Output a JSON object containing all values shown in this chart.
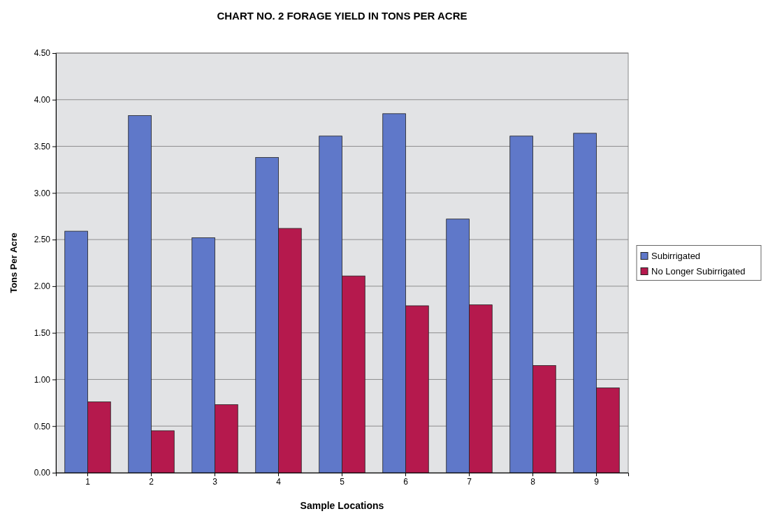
{
  "chart_data": {
    "type": "bar",
    "title": "CHART NO. 2   FORAGE YIELD IN TONS PER ACRE",
    "xlabel": "Sample Locations",
    "ylabel": "Tons Per Acre",
    "categories": [
      "1",
      "2",
      "3",
      "4",
      "5",
      "6",
      "7",
      "8",
      "9"
    ],
    "series": [
      {
        "name": "Subirrigated",
        "color": "#5f78c9",
        "values": [
          2.59,
          3.83,
          2.52,
          3.38,
          3.61,
          3.85,
          2.72,
          3.61,
          3.64
        ]
      },
      {
        "name": "No Longer Subirrigated",
        "color": "#b5194d",
        "values": [
          0.76,
          0.45,
          0.73,
          2.62,
          2.11,
          1.79,
          1.8,
          1.15,
          0.91
        ]
      }
    ],
    "ylim": [
      0,
      4.5
    ],
    "yticks": [
      {
        "value": 0,
        "label": "0.00"
      },
      {
        "value": 0.5,
        "label": "0.50"
      },
      {
        "value": 1,
        "label": "1.00"
      },
      {
        "value": 1.5,
        "label": "1.50"
      },
      {
        "value": 2,
        "label": "2.00"
      },
      {
        "value": 2.5,
        "label": "2.50"
      },
      {
        "value": 3,
        "label": "3.00"
      },
      {
        "value": 3.5,
        "label": "3.50"
      },
      {
        "value": 4,
        "label": "4.00"
      },
      {
        "value": 4.5,
        "label": "4.50"
      }
    ],
    "grid": "y",
    "legend": "right"
  }
}
